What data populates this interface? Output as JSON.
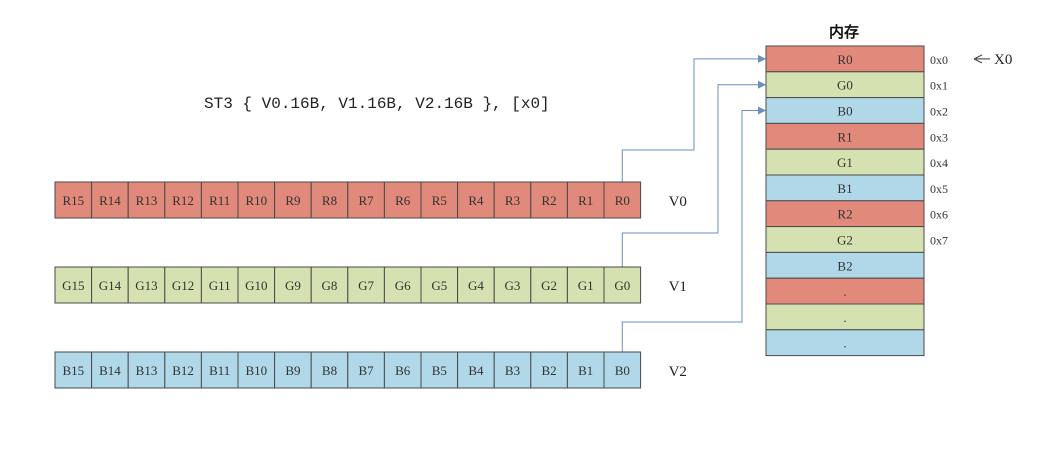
{
  "instruction": "ST3 { V0.16B, V1.16B, V2.16B }, [x0]",
  "memory": {
    "title": "内存",
    "pointer_label": "X0",
    "cells": [
      {
        "label": "R0",
        "color": "red",
        "addr": "0x0"
      },
      {
        "label": "G0",
        "color": "green",
        "addr": "0x1"
      },
      {
        "label": "B0",
        "color": "blue",
        "addr": "0x2"
      },
      {
        "label": "R1",
        "color": "red",
        "addr": "0x3"
      },
      {
        "label": "G1",
        "color": "green",
        "addr": "0x4"
      },
      {
        "label": "B1",
        "color": "blue",
        "addr": "0x5"
      },
      {
        "label": "R2",
        "color": "red",
        "addr": "0x6"
      },
      {
        "label": "G2",
        "color": "green",
        "addr": "0x7"
      },
      {
        "label": "B2",
        "color": "blue",
        "addr": ""
      },
      {
        "label": ".",
        "color": "red",
        "addr": ""
      },
      {
        "label": ".",
        "color": "green",
        "addr": ""
      },
      {
        "label": ".",
        "color": "blue",
        "addr": ""
      }
    ]
  },
  "registers": [
    {
      "name": "V0",
      "color": "red",
      "lanes": [
        "R15",
        "R14",
        "R13",
        "R12",
        "R11",
        "R10",
        "R9",
        "R8",
        "R7",
        "R6",
        "R5",
        "R4",
        "R3",
        "R2",
        "R1",
        "R0"
      ]
    },
    {
      "name": "V1",
      "color": "green",
      "lanes": [
        "G15",
        "G14",
        "G13",
        "G12",
        "G11",
        "G10",
        "G9",
        "G8",
        "G7",
        "G6",
        "G5",
        "G4",
        "G3",
        "G2",
        "G1",
        "G0"
      ]
    },
    {
      "name": "V2",
      "color": "blue",
      "lanes": [
        "B15",
        "B14",
        "B13",
        "B12",
        "B11",
        "B10",
        "B9",
        "B8",
        "B7",
        "B6",
        "B5",
        "B4",
        "B3",
        "B2",
        "B1",
        "B0"
      ]
    }
  ],
  "colors": {
    "red": "#E1897A",
    "green": "#D5E1B0",
    "blue": "#B0D8E8",
    "stroke": "#4A4A4A",
    "arrow": "#6A8FC0"
  }
}
